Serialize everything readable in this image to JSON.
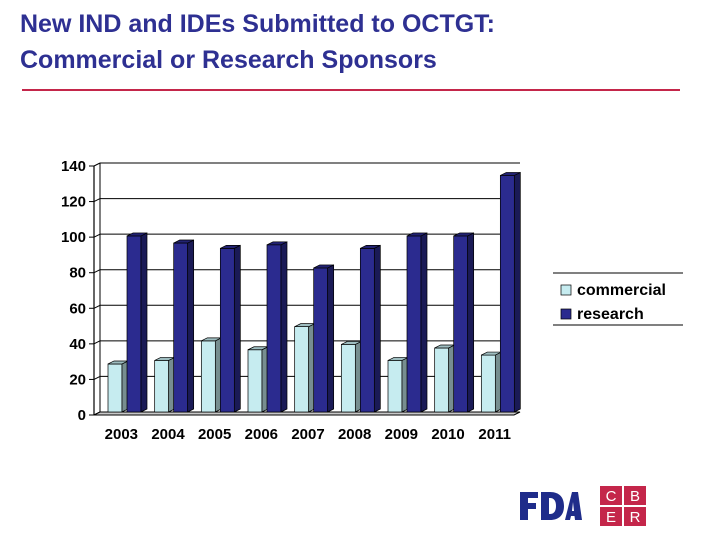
{
  "slide": {
    "title_line1": "New IND and IDEs Submitted to OCTGT:",
    "title_line2": "Commercial or Research Sponsors",
    "title_color": "#2e3092",
    "rule_color": "#c4264a"
  },
  "chart_data": {
    "type": "bar",
    "title": "",
    "xlabel": "",
    "ylabel": "",
    "categories": [
      "2003",
      "2004",
      "2005",
      "2006",
      "2007",
      "2008",
      "2009",
      "2010",
      "2011"
    ],
    "series": [
      {
        "name": "commercial",
        "color": "#c6ecf0",
        "values": [
          27,
          29,
          40,
          35,
          48,
          38,
          29,
          36,
          32
        ]
      },
      {
        "name": "research",
        "color": "#2b2b8f",
        "values": [
          99,
          95,
          92,
          94,
          81,
          92,
          99,
          99,
          133
        ]
      }
    ],
    "ylim": [
      0,
      140
    ],
    "yticks": [
      0,
      20,
      40,
      60,
      80,
      100,
      120,
      140
    ],
    "grid": true,
    "legend_position": "right"
  },
  "logos": {
    "fda_text": "FDA",
    "cber_letters": [
      "C",
      "B",
      "E",
      "R"
    ]
  }
}
